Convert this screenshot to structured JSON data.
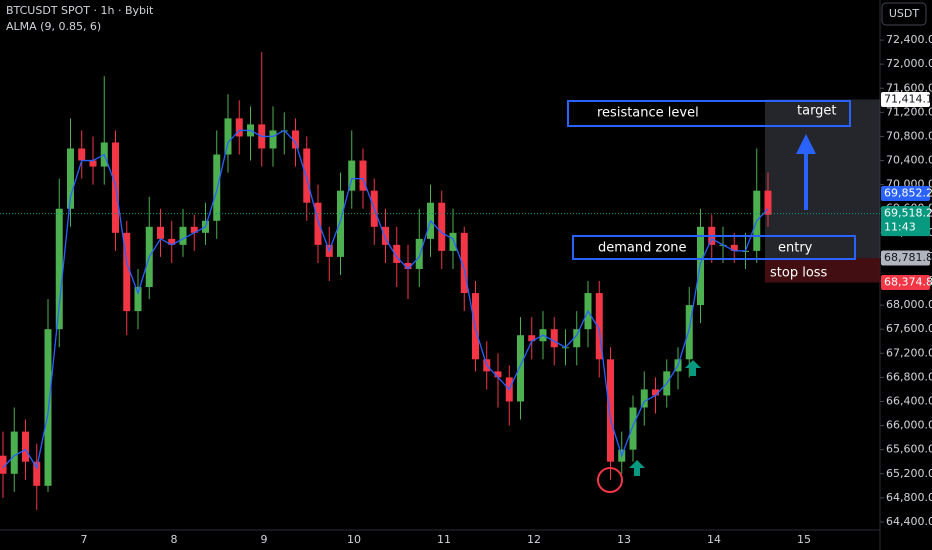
{
  "chart_data": {
    "type": "candlestick",
    "title": "BTCUSDT SPOT · 1h · Bybit",
    "indicator": "ALMA (9, 0.85, 6)",
    "currency": "USDT",
    "categories": [
      "7",
      "8",
      "9",
      "10",
      "11",
      "12",
      "13",
      "14",
      "15"
    ],
    "up_color": "#4caf50",
    "down_color": "#f23645",
    "indicator_color": "#2962ff",
    "ylim": [
      64200,
      72700
    ],
    "yticks": [
      {
        "value": 64400,
        "label": "64,400.0"
      },
      {
        "value": 64800,
        "label": "64,800.0"
      },
      {
        "value": 65200,
        "label": "65,200.0"
      },
      {
        "value": 65600,
        "label": "65,600.0"
      },
      {
        "value": 66000,
        "label": "66,000.0"
      },
      {
        "value": 66400,
        "label": "66,400.0"
      },
      {
        "value": 66800,
        "label": "66,800.0"
      },
      {
        "value": 67200,
        "label": "67,200.0"
      },
      {
        "value": 67600,
        "label": "67,600.0"
      },
      {
        "value": 68000,
        "label": "68,000.0"
      },
      {
        "value": 68400,
        "label": "68,400.0"
      },
      {
        "value": 68800,
        "label": "68,800.0"
      },
      {
        "value": 69200,
        "label": "69,200.0"
      },
      {
        "value": 69600,
        "label": "69,600.0"
      },
      {
        "value": 70000,
        "label": "70,000.0"
      },
      {
        "value": 70400,
        "label": "70,400.0"
      },
      {
        "value": 70800,
        "label": "70,800.0"
      },
      {
        "value": 71200,
        "label": "71,200.0"
      },
      {
        "value": 71600,
        "label": "71,600.0"
      },
      {
        "value": 72000,
        "label": "72,000.0"
      },
      {
        "value": 72400,
        "label": "72,400.0"
      }
    ],
    "open": [
      65500,
      65200,
      65900,
      65400,
      65000,
      67600,
      69600,
      70600,
      70400,
      70300,
      70700,
      69200,
      67900,
      68300,
      69300,
      69100,
      69000,
      69300,
      69200,
      69400,
      70500,
      71100,
      70800,
      71000,
      70600,
      70900,
      70900,
      70600,
      69700,
      69000,
      68800,
      69900,
      70400,
      69900,
      69300,
      69000,
      68700,
      68600,
      69100,
      69700,
      68900,
      69200,
      68200,
      67100,
      66900,
      66800,
      66400,
      67500,
      67400,
      67600,
      67300,
      67300,
      67600,
      68200,
      67100,
      65400,
      65600,
      66300,
      66600,
      66500,
      66900,
      67100,
      68000,
      69300,
      69000,
      69000,
      68900,
      68900,
      69900
    ],
    "high": [
      65900,
      66300,
      66100,
      65700,
      68100,
      70100,
      71100,
      70900,
      70800,
      71800,
      70900,
      69400,
      68600,
      69800,
      69600,
      69400,
      69600,
      69500,
      69700,
      70900,
      71500,
      71400,
      71300,
      72200,
      71300,
      71200,
      71100,
      70800,
      70000,
      69300,
      70200,
      70900,
      70600,
      70100,
      69600,
      69300,
      69000,
      69600,
      70000,
      69900,
      69600,
      69300,
      68400,
      67400,
      67200,
      67000,
      67800,
      67800,
      67900,
      67800,
      67600,
      67900,
      68400,
      68400,
      67300,
      65900,
      66500,
      66900,
      66800,
      67100,
      67300,
      68300,
      69600,
      69500,
      69300,
      69200,
      69200,
      70600,
      70200
    ],
    "low": [
      64800,
      64900,
      65100,
      64600,
      64900,
      67300,
      69300,
      70100,
      70000,
      70000,
      68900,
      67500,
      67600,
      68100,
      68800,
      68700,
      68800,
      68900,
      69000,
      69100,
      70200,
      70500,
      70400,
      70300,
      70300,
      70500,
      70300,
      69400,
      68700,
      68400,
      68500,
      69600,
      69600,
      69000,
      68700,
      68300,
      68100,
      68300,
      68800,
      68600,
      68600,
      67900,
      66900,
      66600,
      66300,
      66000,
      66100,
      67100,
      67100,
      67000,
      67000,
      67000,
      67300,
      66800,
      65100,
      65200,
      65400,
      66000,
      66200,
      66300,
      66600,
      66800,
      67700,
      68700,
      68700,
      68700,
      68600,
      68700,
      69300
    ],
    "close": [
      65200,
      65900,
      65400,
      65000,
      67600,
      69600,
      70600,
      70400,
      70300,
      70700,
      69200,
      67900,
      68300,
      69300,
      69100,
      69000,
      69300,
      69200,
      69400,
      70500,
      71100,
      70800,
      71000,
      70600,
      70900,
      70900,
      70600,
      69700,
      69000,
      68800,
      69900,
      70400,
      69900,
      69300,
      69000,
      68700,
      68600,
      69100,
      69700,
      68900,
      69200,
      68200,
      67100,
      66900,
      66800,
      66400,
      67500,
      67400,
      67600,
      67300,
      67300,
      67600,
      68200,
      67100,
      65400,
      65600,
      66300,
      66600,
      66500,
      66900,
      67100,
      68000,
      69300,
      69000,
      69000,
      68900,
      68900,
      69900,
      69500
    ],
    "alma": [
      65300,
      65500,
      65600,
      65300,
      66200,
      68000,
      69800,
      70400,
      70400,
      70500,
      70000,
      68700,
      68200,
      68800,
      69100,
      69000,
      69100,
      69200,
      69300,
      69900,
      70700,
      70900,
      70900,
      70800,
      70800,
      70900,
      70700,
      70100,
      69400,
      68900,
      69400,
      70100,
      70100,
      69600,
      69100,
      68800,
      68600,
      68800,
      69400,
      69200,
      69100,
      68600,
      67600,
      67000,
      66800,
      66600,
      67000,
      67400,
      67500,
      67400,
      67300,
      67500,
      67900,
      67600,
      66100,
      65500,
      66000,
      66400,
      66500,
      66700,
      67000,
      67600,
      68700,
      69100,
      69000,
      68900,
      68900,
      69400,
      69600
    ],
    "price_labels": [
      {
        "value": 71414.1,
        "label": "71,414.1",
        "color": "#ffffff",
        "text_color": "#131722"
      },
      {
        "value": 69852.2,
        "label": "69,852.2",
        "color": "#2962ff",
        "text_color": "#ffffff"
      },
      {
        "value": 69518.2,
        "label": "69,518.2",
        "color": "#089981",
        "text_color": "#ffffff",
        "countdown": "11:43"
      },
      {
        "value": 68781.8,
        "label": "68,781.8",
        "color": "#b2b5be",
        "text_color": "#131722"
      },
      {
        "value": 68374.8,
        "label": "68,374.8",
        "color": "#f23645",
        "text_color": "#ffffff"
      }
    ],
    "annotations": {
      "resistance": "resistance level",
      "target": "target",
      "demand": "demand zone",
      "entry": "entry",
      "stop": "stop loss"
    }
  }
}
